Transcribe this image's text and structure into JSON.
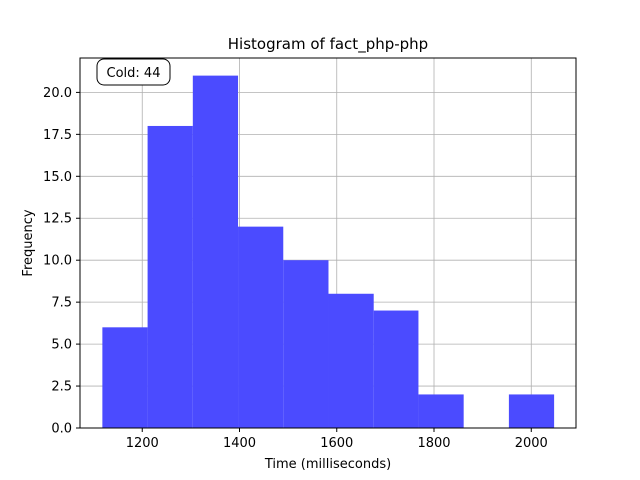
{
  "chart_data": {
    "type": "bar",
    "title": "Histogram of fact_php-php",
    "xlabel": "Time (milliseconds)",
    "ylabel": "Frequency",
    "xlim": [
      1072,
      2092
    ],
    "ylim": [
      0,
      22.05
    ],
    "grid": true,
    "bar_color": "#4b4bff",
    "bins": [
      {
        "x0": 1118,
        "x1": 1211,
        "value": 6
      },
      {
        "x0": 1211,
        "x1": 1304,
        "value": 18
      },
      {
        "x0": 1304,
        "x1": 1397,
        "value": 21
      },
      {
        "x0": 1397,
        "x1": 1490,
        "value": 12
      },
      {
        "x0": 1490,
        "x1": 1583,
        "value": 10
      },
      {
        "x0": 1583,
        "x1": 1676,
        "value": 8
      },
      {
        "x0": 1676,
        "x1": 1768,
        "value": 7
      },
      {
        "x0": 1768,
        "x1": 1861,
        "value": 2
      },
      {
        "x0": 1861,
        "x1": 1954,
        "value": 0
      },
      {
        "x0": 1954,
        "x1": 2047,
        "value": 2
      }
    ],
    "x_ticks": [
      {
        "value": 1200,
        "label": "1200"
      },
      {
        "value": 1400,
        "label": "1400"
      },
      {
        "value": 1600,
        "label": "1600"
      },
      {
        "value": 1800,
        "label": "1800"
      },
      {
        "value": 2000,
        "label": "2000"
      }
    ],
    "y_ticks": [
      {
        "value": 0,
        "label": "0.0"
      },
      {
        "value": 2.5,
        "label": "2.5"
      },
      {
        "value": 5,
        "label": "5.0"
      },
      {
        "value": 7.5,
        "label": "7.5"
      },
      {
        "value": 10,
        "label": "10.0"
      },
      {
        "value": 12.5,
        "label": "12.5"
      },
      {
        "value": 15,
        "label": "15.0"
      },
      {
        "value": 17.5,
        "label": "17.5"
      },
      {
        "value": 20,
        "label": "20.0"
      }
    ],
    "annotation": {
      "text": "Cold: 44",
      "placement": "top-left"
    }
  }
}
